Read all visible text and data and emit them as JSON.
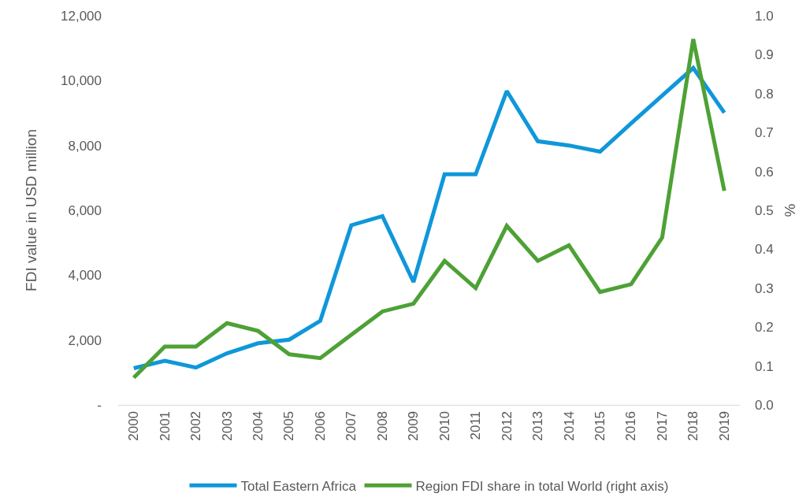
{
  "chart_data": {
    "type": "line",
    "categories": [
      "2000",
      "2001",
      "2002",
      "2003",
      "2004",
      "2005",
      "2006",
      "2007",
      "2008",
      "2009",
      "2010",
      "2011",
      "2012",
      "2013",
      "2014",
      "2015",
      "2016",
      "2017",
      "2018",
      "2019"
    ],
    "series": [
      {
        "name": "Total Eastern Africa",
        "color": "#0f97da",
        "values": [
          1130,
          1360,
          1150,
          1590,
          1900,
          2010,
          2590,
          5540,
          5820,
          3790,
          7110,
          7110,
          9680,
          8130,
          8000,
          7810,
          8680,
          9540,
          10390,
          9010
        ]
      },
      {
        "name": "Region FDI share in total World (right axis)",
        "color": "#4ea135",
        "axis": "y2",
        "values": [
          0.07,
          0.15,
          0.15,
          0.21,
          0.19,
          0.13,
          0.12,
          0.18,
          0.24,
          0.26,
          0.37,
          0.3,
          0.46,
          0.37,
          0.41,
          0.29,
          0.31,
          0.43,
          0.94,
          0.55
        ]
      }
    ],
    "ylabel": "FDI value in USD million",
    "y2label": "%",
    "ylim": [
      0,
      12000
    ],
    "yticks": [
      {
        "value": 0,
        "label": "-"
      },
      {
        "value": 2000,
        "label": "2,000"
      },
      {
        "value": 4000,
        "label": "4,000"
      },
      {
        "value": 6000,
        "label": "6,000"
      },
      {
        "value": 8000,
        "label": "8,000"
      },
      {
        "value": 10000,
        "label": "10,000"
      },
      {
        "value": 12000,
        "label": "12,000"
      }
    ],
    "y2lim": [
      0,
      1.0
    ],
    "y2ticks": [
      {
        "value": 0,
        "label": "0.0"
      },
      0.1,
      0.2,
      0.3,
      0.4,
      0.5,
      0.6,
      0.7,
      0.8,
      0.9,
      {
        "value": 1,
        "label": "1.0"
      }
    ],
    "legend": "bottom",
    "line_style": "solid"
  }
}
